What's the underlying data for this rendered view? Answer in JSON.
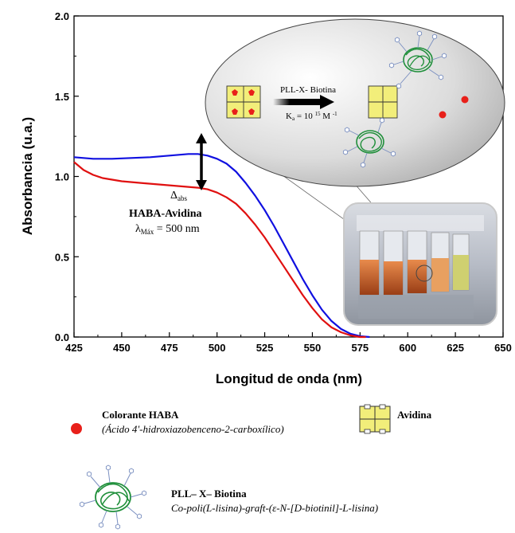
{
  "chart_data": {
    "type": "line",
    "xlabel": "Longitud de onda (nm)",
    "ylabel": "Absorbancia (u.a.)",
    "xlim": [
      425,
      650
    ],
    "ylim": [
      0.0,
      2.0
    ],
    "xticks": [
      "425",
      "450",
      "475",
      "500",
      "525",
      "550",
      "575",
      "600",
      "625",
      "650"
    ],
    "yticks": [
      "0.0",
      "0.5",
      "1.0",
      "1.5",
      "2.0"
    ],
    "grid": false,
    "series": [
      {
        "color": "#1010e0",
        "x": [
          425,
          435,
          445,
          455,
          465,
          475,
          485,
          490,
          495,
          500,
          505,
          510,
          515,
          520,
          525,
          530,
          535,
          540,
          545,
          550,
          555,
          560,
          565,
          570,
          575,
          580
        ],
        "y": [
          1.12,
          1.11,
          1.11,
          1.115,
          1.12,
          1.13,
          1.14,
          1.14,
          1.13,
          1.11,
          1.08,
          1.03,
          0.96,
          0.88,
          0.79,
          0.69,
          0.58,
          0.47,
          0.36,
          0.26,
          0.17,
          0.1,
          0.05,
          0.02,
          0.005,
          0.0
        ]
      },
      {
        "color": "#e01010",
        "x": [
          425,
          430,
          435,
          440,
          450,
          460,
          470,
          480,
          490,
          495,
          500,
          505,
          510,
          515,
          520,
          525,
          530,
          535,
          540,
          545,
          550,
          555,
          560,
          565,
          570,
          575,
          578
        ],
        "y": [
          1.09,
          1.04,
          1.01,
          0.99,
          0.97,
          0.96,
          0.95,
          0.94,
          0.93,
          0.92,
          0.9,
          0.87,
          0.83,
          0.77,
          0.7,
          0.62,
          0.53,
          0.44,
          0.35,
          0.26,
          0.18,
          0.11,
          0.06,
          0.03,
          0.01,
          0.0,
          0.0
        ]
      }
    ]
  },
  "annotation": {
    "delta": "Δ",
    "delta_sub": "abs",
    "complex": "HABA-Avidina",
    "lambda": "λ",
    "lambda_sub": "Máx",
    "lambda_value": " = 500 nm"
  },
  "inset": {
    "reagent": "PLL-X- Biotina",
    "ka_prefix": "K",
    "ka_sub": "a",
    "ka_eq": " = 10 ",
    "ka_exp": "15",
    "ka_unit": " M ",
    "ka_unit_exp": "-1"
  },
  "legend": {
    "haba_name": "Colorante HABA",
    "haba_desc": "(Ácido 4'-hidroxiazobenceno-2-carboxílico)",
    "avidin_name": "Avidina",
    "pll_name": "PLL– X– Biotina",
    "pll_desc": "Co-poli(L-lisina)-graft-(ε-N-[D-biotinil]-L-lisina)"
  },
  "colors": {
    "haba_dot": "#e8201a",
    "avidin_fill": "#f2ee7a",
    "polymer": "#1f8f3a",
    "biotin": "#7a8fc0"
  }
}
